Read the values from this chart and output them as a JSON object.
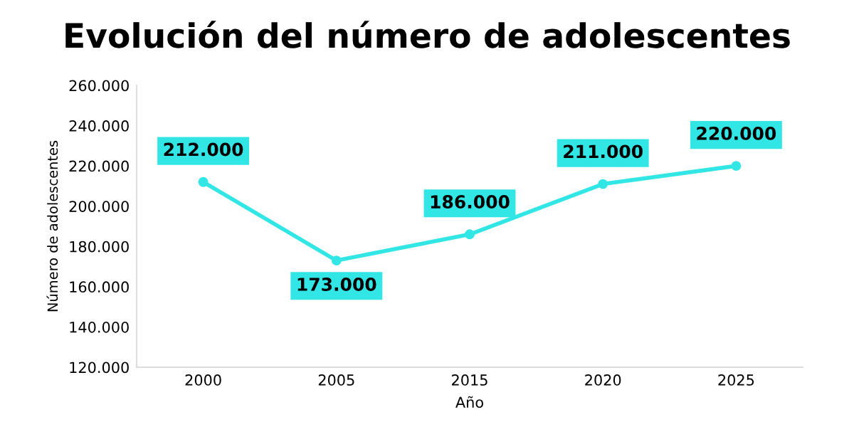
{
  "chart_data": {
    "type": "line",
    "title": "Evolución del número de adolescentes",
    "xlabel": "Año",
    "ylabel": "Número de adolescentes",
    "categories": [
      "2000",
      "2005",
      "2015",
      "2020",
      "2025"
    ],
    "series": [
      {
        "color": "#33e6e6",
        "values": [
          212000,
          173000,
          186000,
          211000,
          220000
        ],
        "value_labels": [
          "212.000",
          "173.000",
          "186.000",
          "211.000",
          "220.000"
        ]
      }
    ],
    "ylim": [
      120000,
      260000
    ],
    "yticks": [
      {
        "value": 120000,
        "label": "120.000"
      },
      {
        "value": 140000,
        "label": "140.000"
      },
      {
        "value": 160000,
        "label": "160.000"
      },
      {
        "value": 180000,
        "label": "180.000"
      },
      {
        "value": 200000,
        "label": "200.000"
      },
      {
        "value": 220000,
        "label": "220.000"
      },
      {
        "value": 240000,
        "label": "240.000"
      },
      {
        "value": 260000,
        "label": "260.000"
      }
    ],
    "marker": "circle",
    "grid": false
  }
}
